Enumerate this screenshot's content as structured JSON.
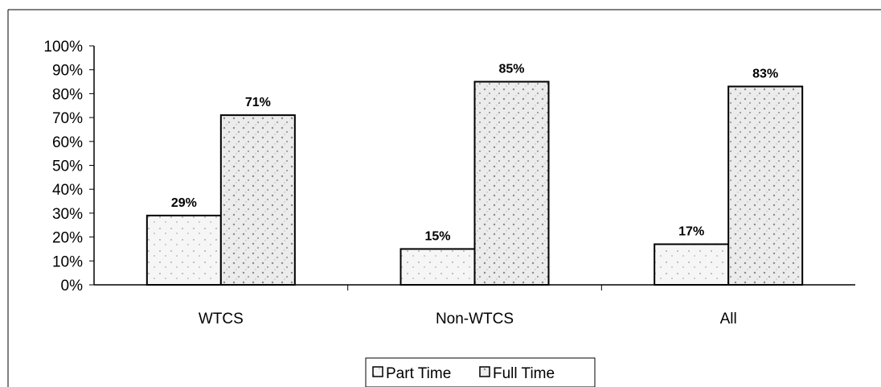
{
  "chart_data": {
    "type": "bar",
    "categories": [
      "WTCS",
      "Non-WTCS",
      "All"
    ],
    "series": [
      {
        "name": "Part Time",
        "values": [
          29,
          15,
          17
        ],
        "labels": [
          "29%",
          "15%",
          "17%"
        ]
      },
      {
        "name": "Full Time",
        "values": [
          71,
          85,
          83
        ],
        "labels": [
          "71%",
          "85%",
          "83%"
        ]
      }
    ],
    "ylim": [
      0,
      100
    ],
    "yticks": [
      "0%",
      "10%",
      "20%",
      "30%",
      "40%",
      "50%",
      "60%",
      "70%",
      "80%",
      "90%",
      "100%"
    ],
    "grid": false,
    "legend_position": "bottom",
    "colors": {
      "part_time_fill": "#f4f4f4",
      "full_time_fill": "#e6e6e6",
      "stroke": "#000000"
    }
  }
}
